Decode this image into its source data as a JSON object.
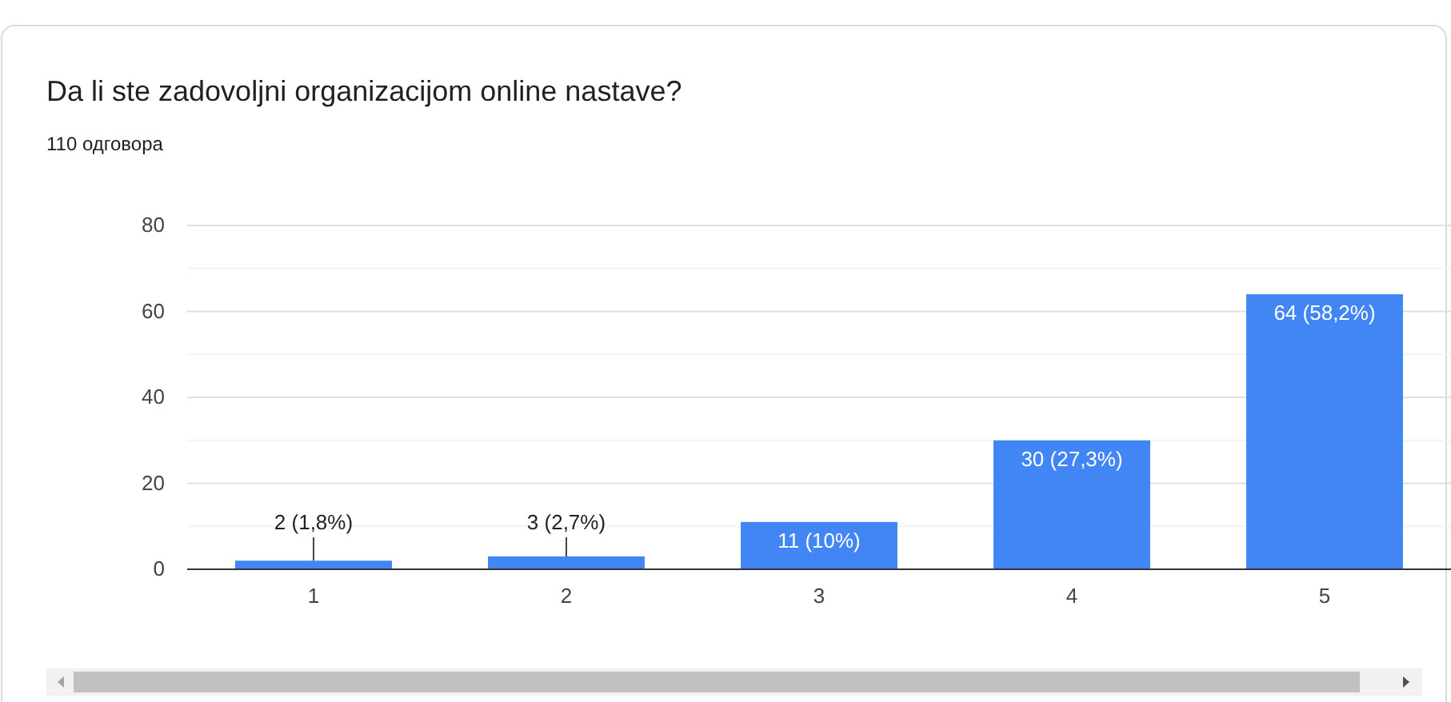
{
  "chart_data": {
    "type": "bar",
    "title": "Da li ste zadovoljni organizacijom online nastave?",
    "subtitle": "110 одговора",
    "categories": [
      "1",
      "2",
      "3",
      "4",
      "5"
    ],
    "values": [
      2,
      3,
      11,
      30,
      64
    ],
    "value_labels": [
      "2 (1,8%)",
      "3 (2,7%)",
      "11 (10%)",
      "30 (27,3%)",
      "64 (58,2%)"
    ],
    "color": "#4285f4",
    "ylim": [
      0,
      80
    ],
    "yticks": [
      0,
      {
        "value": 10,
        "label": null
      },
      20,
      {
        "value": 30,
        "label": null
      },
      40,
      {
        "value": 50,
        "label": null
      },
      60,
      {
        "value": 70,
        "label": null
      },
      80
    ],
    "grid": "y"
  }
}
